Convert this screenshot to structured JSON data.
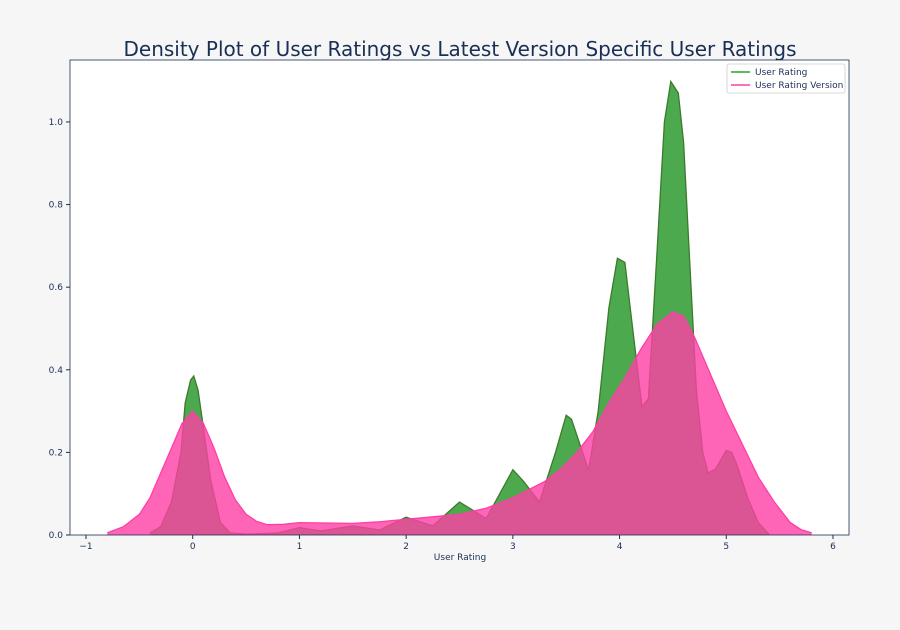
{
  "chart_data": {
    "type": "area",
    "title": "Density Plot of User Ratings vs Latest Version Specific User Ratings",
    "xlabel": "User Rating",
    "ylabel": "",
    "xlim": [
      -1.15,
      6.15
    ],
    "ylim": [
      0,
      1.15
    ],
    "xticks": [
      -1,
      0,
      1,
      2,
      3,
      4,
      5,
      6
    ],
    "xtick_labels": [
      "−1",
      "0",
      "1",
      "2",
      "3",
      "4",
      "5",
      "6"
    ],
    "yticks": [
      0,
      0.2,
      0.4,
      0.6,
      0.8,
      1.0
    ],
    "ytick_labels": [
      "0.0",
      "0.2",
      "0.4",
      "0.6",
      "0.8",
      "1.0"
    ],
    "grid": false,
    "legend_position": "top-right",
    "series": [
      {
        "name": "User Rating",
        "color": "#2ca02c",
        "fill": "#2e9a2e",
        "x": [
          -0.4,
          -0.3,
          -0.2,
          -0.11,
          -0.07,
          -0.02,
          0.01,
          0.05,
          0.1,
          0.17,
          0.26,
          0.35,
          0.5,
          0.8,
          1.0,
          1.2,
          1.5,
          1.75,
          2.0,
          2.25,
          2.5,
          2.75,
          3.0,
          3.1,
          3.25,
          3.4,
          3.5,
          3.55,
          3.71,
          3.8,
          3.9,
          3.98,
          4.05,
          4.1,
          4.21,
          4.27,
          4.35,
          4.42,
          4.48,
          4.55,
          4.6,
          4.65,
          4.72,
          4.78,
          4.83,
          4.9,
          5.0,
          5.05,
          5.1,
          5.2,
          5.3,
          5.4
        ],
        "y": [
          0.005,
          0.02,
          0.08,
          0.2,
          0.32,
          0.375,
          0.385,
          0.35,
          0.26,
          0.13,
          0.03,
          0.005,
          0.002,
          0.005,
          0.018,
          0.01,
          0.022,
          0.012,
          0.043,
          0.022,
          0.08,
          0.04,
          0.158,
          0.13,
          0.08,
          0.2,
          0.29,
          0.28,
          0.157,
          0.3,
          0.55,
          0.67,
          0.66,
          0.55,
          0.31,
          0.33,
          0.68,
          1.0,
          1.098,
          1.07,
          0.95,
          0.7,
          0.35,
          0.2,
          0.15,
          0.16,
          0.205,
          0.2,
          0.17,
          0.09,
          0.03,
          0.002
        ]
      },
      {
        "name": "User Rating Version",
        "color": "#ff3ea5",
        "fill": "#ff3ea5",
        "x": [
          -0.8,
          -0.65,
          -0.5,
          -0.4,
          -0.3,
          -0.2,
          -0.1,
          0,
          0.1,
          0.2,
          0.3,
          0.4,
          0.5,
          0.6,
          0.7,
          0.85,
          1.0,
          1.25,
          1.5,
          1.75,
          2.0,
          2.25,
          2.5,
          2.75,
          3.0,
          3.15,
          3.3,
          3.45,
          3.6,
          3.75,
          3.9,
          4.05,
          4.2,
          4.35,
          4.5,
          4.6,
          4.7,
          4.85,
          5.0,
          5.15,
          5.3,
          5.45,
          5.6,
          5.7,
          5.8
        ],
        "y": [
          0.005,
          0.02,
          0.05,
          0.09,
          0.15,
          0.21,
          0.27,
          0.3,
          0.27,
          0.21,
          0.14,
          0.085,
          0.05,
          0.033,
          0.025,
          0.026,
          0.03,
          0.029,
          0.028,
          0.032,
          0.038,
          0.044,
          0.05,
          0.065,
          0.09,
          0.11,
          0.13,
          0.16,
          0.2,
          0.25,
          0.32,
          0.38,
          0.45,
          0.51,
          0.54,
          0.53,
          0.48,
          0.39,
          0.3,
          0.22,
          0.14,
          0.08,
          0.03,
          0.013,
          0.005
        ]
      }
    ]
  }
}
